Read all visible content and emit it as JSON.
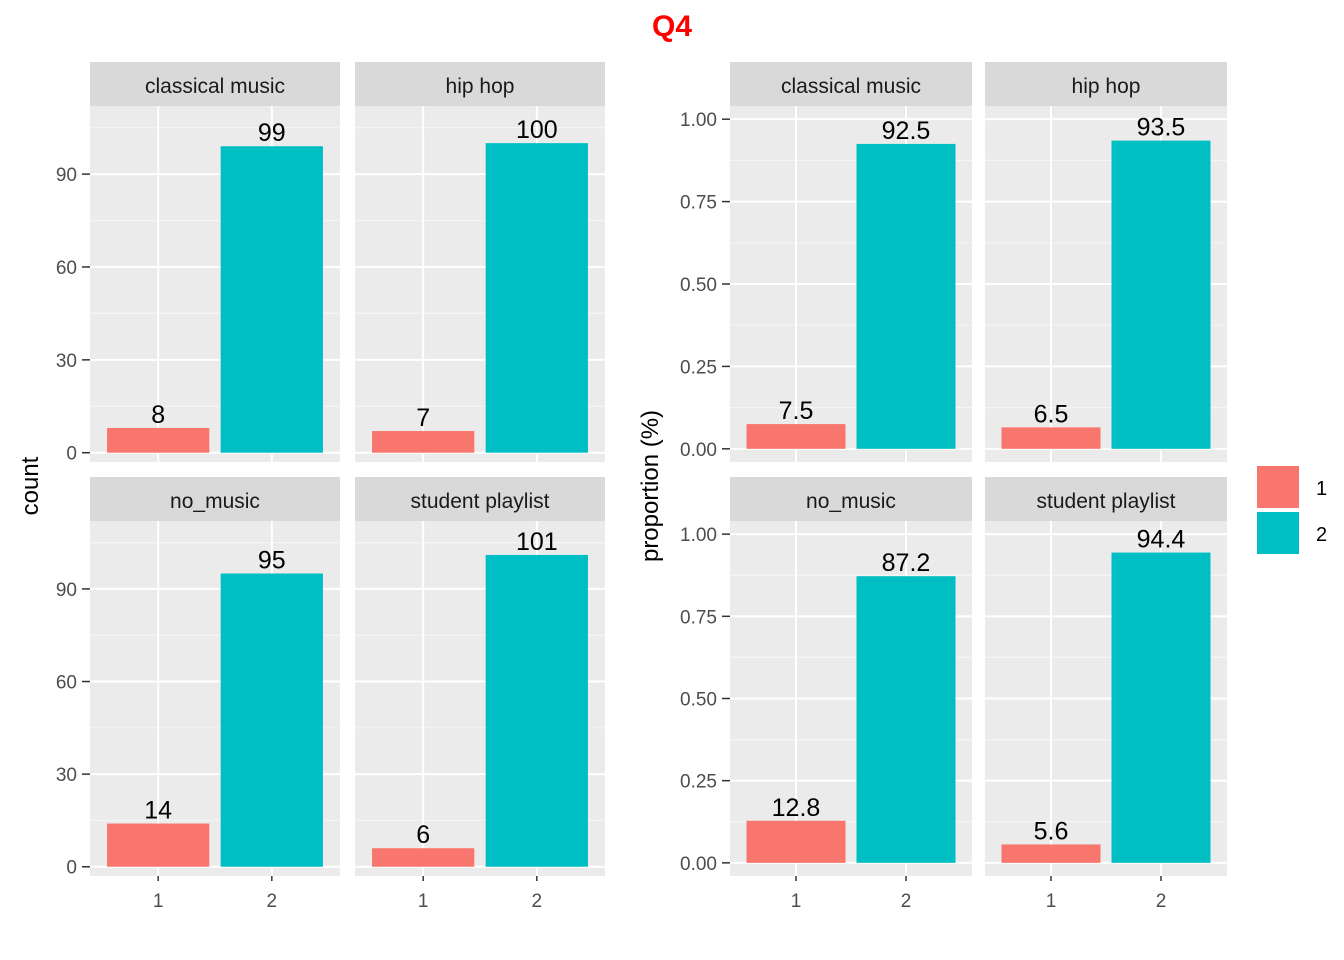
{
  "title": "Q4",
  "colors": {
    "title": "#ff0000",
    "panel_bg": "#ebebeb",
    "strip_bg": "#d9d9d9",
    "grid_major": "#ffffff",
    "grid_minor": "#f5f5f5",
    "group_1": "#f8766d",
    "group_2": "#00bfc4",
    "tick": "#333333"
  },
  "legend": {
    "entries": [
      {
        "label": "1",
        "color": "#f8766d"
      },
      {
        "label": "2",
        "color": "#00bfc4"
      }
    ]
  },
  "chart_data": [
    {
      "type": "bar",
      "facet": "wrap 2x2",
      "ylabel": "count",
      "ylim": [
        -3,
        112
      ],
      "yticks": [
        0,
        30,
        60,
        90
      ],
      "ytick_labels": [
        "0",
        "30",
        "60",
        "90"
      ],
      "categories": [
        "1",
        "2"
      ],
      "panels": [
        {
          "strip": "classical music",
          "values": [
            8,
            99
          ],
          "labels": [
            "8",
            "99"
          ]
        },
        {
          "strip": "hip hop",
          "values": [
            7,
            100
          ],
          "labels": [
            "7",
            "100"
          ]
        },
        {
          "strip": "no_music",
          "values": [
            14,
            95
          ],
          "labels": [
            "14",
            "95"
          ]
        },
        {
          "strip": "student playlist",
          "values": [
            6,
            101
          ],
          "labels": [
            "6",
            "101"
          ]
        }
      ]
    },
    {
      "type": "bar",
      "facet": "wrap 2x2",
      "ylabel": "proportion (%)",
      "ylim": [
        -0.04,
        1.04
      ],
      "yticks": [
        0,
        0.25,
        0.5,
        0.75,
        1.0
      ],
      "ytick_labels": [
        "0.00",
        "0.25",
        "0.50",
        "0.75",
        "1.00"
      ],
      "categories": [
        "1",
        "2"
      ],
      "panels": [
        {
          "strip": "classical music",
          "values": [
            0.075,
            0.925
          ],
          "labels": [
            "7.5",
            "92.5"
          ]
        },
        {
          "strip": "hip hop",
          "values": [
            0.065,
            0.935
          ],
          "labels": [
            "6.5",
            "93.5"
          ]
        },
        {
          "strip": "no_music",
          "values": [
            0.128,
            0.872
          ],
          "labels": [
            "12.8",
            "87.2"
          ]
        },
        {
          "strip": "student playlist",
          "values": [
            0.056,
            0.944
          ],
          "labels": [
            "5.6",
            "94.4"
          ]
        }
      ]
    }
  ]
}
